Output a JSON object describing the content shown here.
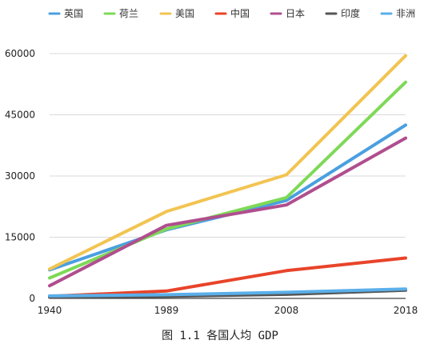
{
  "caption": "图 1.1 各国人均 GDP",
  "chart_data": {
    "type": "line",
    "title": "",
    "xlabel": "",
    "ylabel": "",
    "categories": [
      "1940",
      "1989",
      "2008",
      "2018"
    ],
    "y_ticks": [
      "0",
      "15000",
      "30000",
      "45000",
      "60000"
    ],
    "ylim": [
      0,
      62000
    ],
    "grid": "horizontal",
    "legend_position": "top",
    "series": [
      {
        "name": "英国",
        "color": "#4a9fe0",
        "values": [
          7000,
          16800,
          24000,
          42500
        ]
      },
      {
        "name": "荷兰",
        "color": "#7ed957",
        "values": [
          5000,
          17000,
          24700,
          53000
        ]
      },
      {
        "name": "美国",
        "color": "#f2c451",
        "values": [
          7200,
          21300,
          30300,
          59500
        ]
      },
      {
        "name": "中国",
        "color": "#e8442a",
        "values": [
          500,
          1800,
          6800,
          9900
        ]
      },
      {
        "name": "日本",
        "color": "#b04e8e",
        "values": [
          3100,
          17900,
          22900,
          39300
        ]
      },
      {
        "name": "印度",
        "color": "#555555",
        "values": [
          300,
          500,
          1000,
          2000
        ]
      },
      {
        "name": "非洲",
        "color": "#5aafea",
        "values": [
          600,
          900,
          1500,
          2300
        ]
      }
    ]
  }
}
